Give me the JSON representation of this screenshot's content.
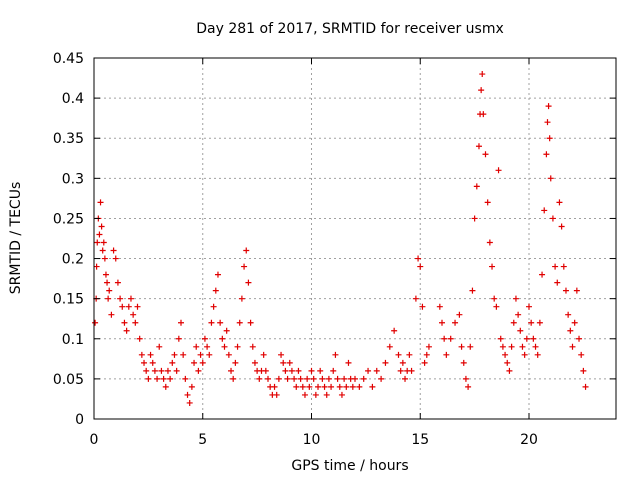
{
  "chart_data": {
    "type": "scatter",
    "title": "Day 281 of 2017, SRMTID for receiver usmx",
    "xlabel": "GPS time / hours",
    "ylabel": "SRMTID / TECUs",
    "xlim": [
      0,
      24
    ],
    "ylim": [
      0,
      0.45
    ],
    "xticks": [
      0,
      5,
      10,
      15,
      20
    ],
    "xtick_labels": [
      "0",
      "5",
      "10",
      "15",
      "20"
    ],
    "yticks": [
      0,
      0.05,
      0.1,
      0.15,
      0.2,
      0.25,
      0.3,
      0.35,
      0.4,
      0.45
    ],
    "ytick_labels": [
      "0",
      "0.05",
      "0.1",
      "0.15",
      "0.2",
      "0.25",
      "0.3",
      "0.35",
      "0.4",
      "0.45"
    ],
    "grid": true,
    "marker": "+",
    "color": "#e00000",
    "series": [
      {
        "name": "SRMTID",
        "points": [
          [
            0.05,
            0.12
          ],
          [
            0.1,
            0.15
          ],
          [
            0.12,
            0.19
          ],
          [
            0.15,
            0.22
          ],
          [
            0.2,
            0.25
          ],
          [
            0.25,
            0.23
          ],
          [
            0.3,
            0.27
          ],
          [
            0.35,
            0.24
          ],
          [
            0.4,
            0.21
          ],
          [
            0.45,
            0.22
          ],
          [
            0.5,
            0.2
          ],
          [
            0.55,
            0.18
          ],
          [
            0.6,
            0.17
          ],
          [
            0.65,
            0.15
          ],
          [
            0.7,
            0.16
          ],
          [
            0.8,
            0.13
          ],
          [
            0.9,
            0.21
          ],
          [
            1.0,
            0.2
          ],
          [
            1.1,
            0.17
          ],
          [
            1.2,
            0.15
          ],
          [
            1.3,
            0.14
          ],
          [
            1.4,
            0.12
          ],
          [
            1.5,
            0.11
          ],
          [
            1.6,
            0.14
          ],
          [
            1.7,
            0.15
          ],
          [
            1.8,
            0.13
          ],
          [
            1.9,
            0.12
          ],
          [
            2.0,
            0.14
          ],
          [
            2.1,
            0.1
          ],
          [
            2.2,
            0.08
          ],
          [
            2.3,
            0.07
          ],
          [
            2.4,
            0.06
          ],
          [
            2.5,
            0.05
          ],
          [
            2.6,
            0.08
          ],
          [
            2.7,
            0.07
          ],
          [
            2.8,
            0.06
          ],
          [
            2.9,
            0.05
          ],
          [
            3.0,
            0.09
          ],
          [
            3.1,
            0.06
          ],
          [
            3.2,
            0.05
          ],
          [
            3.3,
            0.04
          ],
          [
            3.4,
            0.06
          ],
          [
            3.5,
            0.05
          ],
          [
            3.6,
            0.07
          ],
          [
            3.7,
            0.08
          ],
          [
            3.8,
            0.06
          ],
          [
            3.9,
            0.1
          ],
          [
            4.0,
            0.12
          ],
          [
            4.1,
            0.08
          ],
          [
            4.2,
            0.05
          ],
          [
            4.3,
            0.03
          ],
          [
            4.4,
            0.02
          ],
          [
            4.5,
            0.04
          ],
          [
            4.6,
            0.07
          ],
          [
            4.7,
            0.09
          ],
          [
            4.8,
            0.06
          ],
          [
            4.9,
            0.08
          ],
          [
            5.0,
            0.07
          ],
          [
            5.1,
            0.1
          ],
          [
            5.2,
            0.09
          ],
          [
            5.3,
            0.08
          ],
          [
            5.4,
            0.12
          ],
          [
            5.5,
            0.14
          ],
          [
            5.6,
            0.16
          ],
          [
            5.7,
            0.18
          ],
          [
            5.8,
            0.12
          ],
          [
            5.9,
            0.1
          ],
          [
            6.0,
            0.09
          ],
          [
            6.1,
            0.11
          ],
          [
            6.2,
            0.08
          ],
          [
            6.3,
            0.06
          ],
          [
            6.4,
            0.05
          ],
          [
            6.5,
            0.07
          ],
          [
            6.6,
            0.09
          ],
          [
            6.7,
            0.12
          ],
          [
            6.8,
            0.15
          ],
          [
            6.9,
            0.19
          ],
          [
            7.0,
            0.21
          ],
          [
            7.1,
            0.17
          ],
          [
            7.2,
            0.12
          ],
          [
            7.3,
            0.09
          ],
          [
            7.4,
            0.07
          ],
          [
            7.5,
            0.06
          ],
          [
            7.6,
            0.05
          ],
          [
            7.7,
            0.06
          ],
          [
            7.8,
            0.08
          ],
          [
            7.9,
            0.06
          ],
          [
            8.0,
            0.05
          ],
          [
            8.1,
            0.04
          ],
          [
            8.2,
            0.03
          ],
          [
            8.3,
            0.04
          ],
          [
            8.4,
            0.03
          ],
          [
            8.5,
            0.05
          ],
          [
            8.6,
            0.08
          ],
          [
            8.7,
            0.07
          ],
          [
            8.8,
            0.06
          ],
          [
            8.9,
            0.05
          ],
          [
            9.0,
            0.07
          ],
          [
            9.1,
            0.06
          ],
          [
            9.2,
            0.05
          ],
          [
            9.3,
            0.04
          ],
          [
            9.4,
            0.06
          ],
          [
            9.5,
            0.05
          ],
          [
            9.6,
            0.04
          ],
          [
            9.7,
            0.03
          ],
          [
            9.8,
            0.05
          ],
          [
            9.9,
            0.04
          ],
          [
            10.0,
            0.06
          ],
          [
            10.1,
            0.05
          ],
          [
            10.2,
            0.03
          ],
          [
            10.3,
            0.04
          ],
          [
            10.4,
            0.06
          ],
          [
            10.5,
            0.05
          ],
          [
            10.6,
            0.04
          ],
          [
            10.7,
            0.03
          ],
          [
            10.8,
            0.05
          ],
          [
            10.9,
            0.04
          ],
          [
            11.0,
            0.06
          ],
          [
            11.1,
            0.08
          ],
          [
            11.2,
            0.05
          ],
          [
            11.3,
            0.04
          ],
          [
            11.4,
            0.03
          ],
          [
            11.5,
            0.05
          ],
          [
            11.6,
            0.04
          ],
          [
            11.7,
            0.07
          ],
          [
            11.8,
            0.05
          ],
          [
            11.9,
            0.04
          ],
          [
            12.0,
            0.05
          ],
          [
            12.2,
            0.04
          ],
          [
            12.4,
            0.05
          ],
          [
            12.6,
            0.06
          ],
          [
            12.8,
            0.04
          ],
          [
            13.0,
            0.06
          ],
          [
            13.2,
            0.05
          ],
          [
            13.4,
            0.07
          ],
          [
            13.6,
            0.09
          ],
          [
            13.8,
            0.11
          ],
          [
            14.0,
            0.08
          ],
          [
            14.1,
            0.06
          ],
          [
            14.2,
            0.07
          ],
          [
            14.3,
            0.05
          ],
          [
            14.4,
            0.06
          ],
          [
            14.5,
            0.08
          ],
          [
            14.6,
            0.06
          ],
          [
            14.8,
            0.15
          ],
          [
            14.9,
            0.2
          ],
          [
            15.0,
            0.19
          ],
          [
            15.1,
            0.14
          ],
          [
            15.2,
            0.07
          ],
          [
            15.3,
            0.08
          ],
          [
            15.4,
            0.09
          ],
          [
            15.9,
            0.14
          ],
          [
            16.0,
            0.12
          ],
          [
            16.1,
            0.1
          ],
          [
            16.2,
            0.08
          ],
          [
            16.4,
            0.1
          ],
          [
            16.6,
            0.12
          ],
          [
            16.8,
            0.13
          ],
          [
            16.9,
            0.09
          ],
          [
            17.0,
            0.07
          ],
          [
            17.1,
            0.05
          ],
          [
            17.2,
            0.04
          ],
          [
            17.3,
            0.09
          ],
          [
            17.4,
            0.16
          ],
          [
            17.5,
            0.25
          ],
          [
            17.6,
            0.29
          ],
          [
            17.7,
            0.34
          ],
          [
            17.75,
            0.38
          ],
          [
            17.8,
            0.41
          ],
          [
            17.85,
            0.43
          ],
          [
            17.9,
            0.38
          ],
          [
            18.0,
            0.33
          ],
          [
            18.1,
            0.27
          ],
          [
            18.2,
            0.22
          ],
          [
            18.3,
            0.19
          ],
          [
            18.4,
            0.15
          ],
          [
            18.5,
            0.14
          ],
          [
            18.6,
            0.31
          ],
          [
            18.7,
            0.1
          ],
          [
            18.8,
            0.09
          ],
          [
            18.9,
            0.08
          ],
          [
            19.0,
            0.07
          ],
          [
            19.1,
            0.06
          ],
          [
            19.2,
            0.09
          ],
          [
            19.3,
            0.12
          ],
          [
            19.4,
            0.15
          ],
          [
            19.5,
            0.13
          ],
          [
            19.6,
            0.11
          ],
          [
            19.7,
            0.09
          ],
          [
            19.8,
            0.08
          ],
          [
            19.9,
            0.1
          ],
          [
            20.0,
            0.14
          ],
          [
            20.1,
            0.12
          ],
          [
            20.2,
            0.1
          ],
          [
            20.3,
            0.09
          ],
          [
            20.4,
            0.08
          ],
          [
            20.5,
            0.12
          ],
          [
            20.6,
            0.18
          ],
          [
            20.7,
            0.26
          ],
          [
            20.8,
            0.33
          ],
          [
            20.85,
            0.37
          ],
          [
            20.9,
            0.39
          ],
          [
            20.95,
            0.35
          ],
          [
            21.0,
            0.3
          ],
          [
            21.1,
            0.25
          ],
          [
            21.2,
            0.19
          ],
          [
            21.3,
            0.17
          ],
          [
            21.4,
            0.27
          ],
          [
            21.5,
            0.24
          ],
          [
            21.6,
            0.19
          ],
          [
            21.7,
            0.16
          ],
          [
            21.8,
            0.13
          ],
          [
            21.9,
            0.11
          ],
          [
            22.0,
            0.09
          ],
          [
            22.1,
            0.12
          ],
          [
            22.2,
            0.16
          ],
          [
            22.3,
            0.1
          ],
          [
            22.4,
            0.08
          ],
          [
            22.5,
            0.06
          ],
          [
            22.6,
            0.04
          ]
        ]
      }
    ]
  }
}
